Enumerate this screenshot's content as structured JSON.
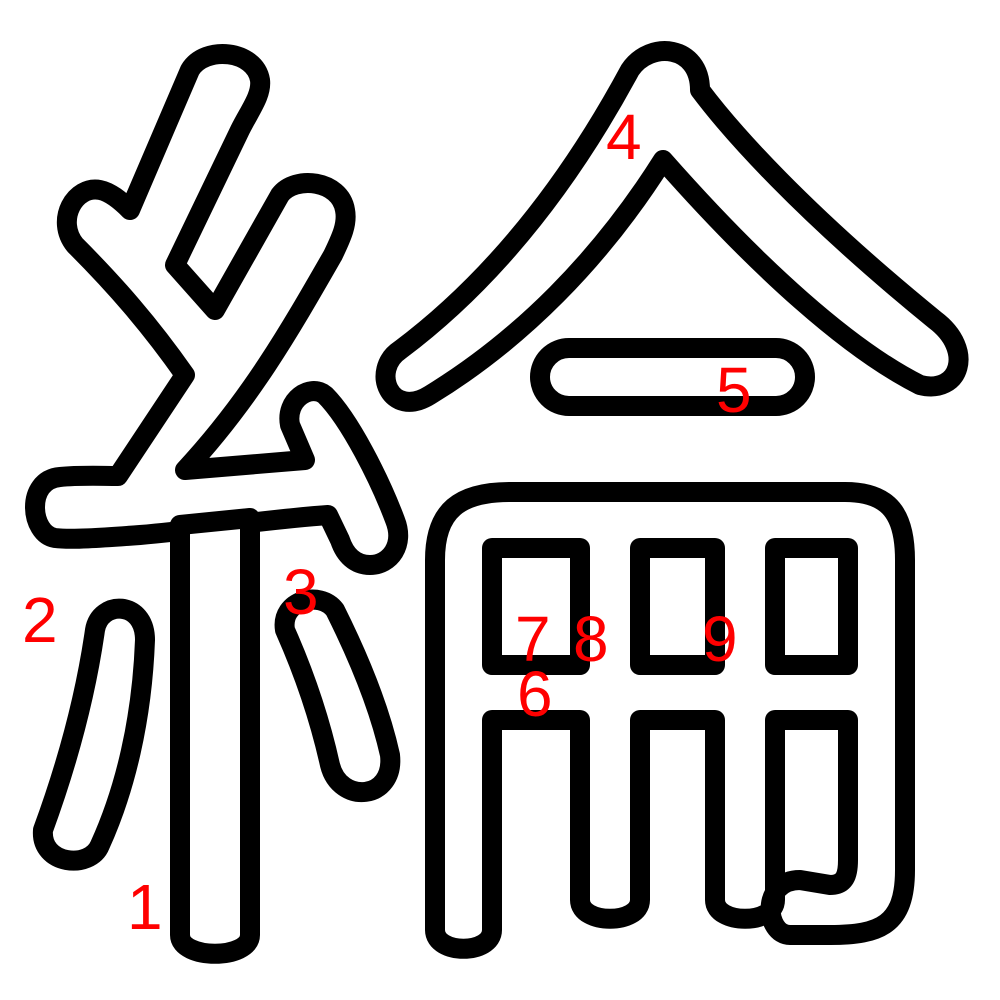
{
  "character": {
    "name": "stroke-order-diagram",
    "fill_color": "#ffffff",
    "outline_color": "#000000",
    "label_color": "#ff0000"
  },
  "labels": [
    {
      "text": "1"
    },
    {
      "text": "2"
    },
    {
      "text": "3"
    },
    {
      "text": "4"
    },
    {
      "text": "5"
    },
    {
      "text": "6"
    },
    {
      "text": "7"
    },
    {
      "text": "8"
    },
    {
      "text": "9"
    }
  ]
}
